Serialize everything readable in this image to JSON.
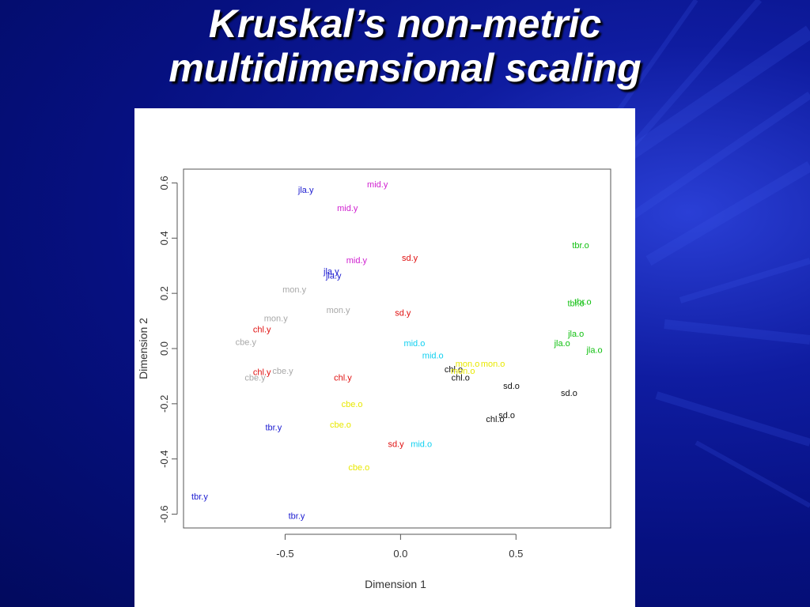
{
  "slide": {
    "title_line1": "Kruskal’s non-metric",
    "title_line2": "multidimensional scaling"
  },
  "colors": {
    "background": "#061080",
    "panel": "#ffffff",
    "blue": "#1a1ad0",
    "magenta": "#d020d0",
    "red": "#e01010",
    "gray": "#a8a8a8",
    "cyan": "#10d0f0",
    "yellow": "#e8e800",
    "black": "#111111",
    "green": "#10c010"
  },
  "chart_data": {
    "type": "scatter",
    "xlabel": "Dimension 1",
    "ylabel": "Dimension 2",
    "xlim": [
      -0.94,
      0.91
    ],
    "ylim": [
      -0.65,
      0.65
    ],
    "xticks": [
      -0.5,
      0.0,
      0.5
    ],
    "xtick_labels": [
      "-0.5",
      "0.0",
      "0.5"
    ],
    "yticks": [
      -0.6,
      -0.4,
      -0.2,
      0.0,
      0.2,
      0.4,
      0.6
    ],
    "ytick_labels": [
      "-0.6",
      "-0.4",
      "-0.2",
      "0.0",
      "0.2",
      "0.4",
      "0.6"
    ],
    "grid": false,
    "points": [
      {
        "label": "jla.y",
        "x": -0.41,
        "y": 0.575,
        "color": "blue"
      },
      {
        "label": "mid.y",
        "x": -0.1,
        "y": 0.595,
        "color": "magenta"
      },
      {
        "label": "mid.y",
        "x": -0.23,
        "y": 0.51,
        "color": "magenta"
      },
      {
        "label": "mid.y",
        "x": -0.19,
        "y": 0.32,
        "color": "magenta"
      },
      {
        "label": "sd.y",
        "x": 0.04,
        "y": 0.33,
        "color": "red"
      },
      {
        "label": "jla.y",
        "x": -0.3,
        "y": 0.28,
        "color": "blue"
      },
      {
        "label": "jla.y",
        "x": -0.29,
        "y": 0.265,
        "color": "blue"
      },
      {
        "label": "mon.y",
        "x": -0.46,
        "y": 0.215,
        "color": "gray"
      },
      {
        "label": "mon.y",
        "x": -0.27,
        "y": 0.14,
        "color": "gray"
      },
      {
        "label": "sd.y",
        "x": 0.01,
        "y": 0.13,
        "color": "red"
      },
      {
        "label": "mon.y",
        "x": -0.54,
        "y": 0.11,
        "color": "gray"
      },
      {
        "label": "chl.y",
        "x": -0.6,
        "y": 0.07,
        "color": "red"
      },
      {
        "label": "cbe.y",
        "x": -0.67,
        "y": 0.025,
        "color": "gray"
      },
      {
        "label": "chl.y",
        "x": -0.6,
        "y": -0.085,
        "color": "red"
      },
      {
        "label": "cbe.y",
        "x": -0.51,
        "y": -0.08,
        "color": "gray"
      },
      {
        "label": "cbe.y",
        "x": -0.63,
        "y": -0.105,
        "color": "gray"
      },
      {
        "label": "chl.y",
        "x": -0.25,
        "y": -0.105,
        "color": "red"
      },
      {
        "label": "mid.o",
        "x": 0.06,
        "y": 0.02,
        "color": "cyan"
      },
      {
        "label": "mid.o",
        "x": 0.14,
        "y": -0.025,
        "color": "cyan"
      },
      {
        "label": "chl.o",
        "x": 0.23,
        "y": -0.075,
        "color": "black"
      },
      {
        "label": "mon.o",
        "x": 0.29,
        "y": -0.055,
        "color": "yellow"
      },
      {
        "label": "mon.o",
        "x": 0.4,
        "y": -0.055,
        "color": "yellow"
      },
      {
        "label": "mon.o",
        "x": 0.27,
        "y": -0.08,
        "color": "yellow"
      },
      {
        "label": "chl.o",
        "x": 0.26,
        "y": -0.105,
        "color": "black"
      },
      {
        "label": "sd.o",
        "x": 0.48,
        "y": -0.135,
        "color": "black"
      },
      {
        "label": "sd.o",
        "x": 0.73,
        "y": -0.16,
        "color": "black"
      },
      {
        "label": "sd.o",
        "x": 0.46,
        "y": -0.24,
        "color": "black"
      },
      {
        "label": "chl.o",
        "x": 0.41,
        "y": -0.255,
        "color": "black"
      },
      {
        "label": "cbe.o",
        "x": -0.21,
        "y": -0.2,
        "color": "yellow"
      },
      {
        "label": "cbe.o",
        "x": -0.26,
        "y": -0.275,
        "color": "yellow"
      },
      {
        "label": "tbr.y",
        "x": -0.55,
        "y": -0.285,
        "color": "blue"
      },
      {
        "label": "sd.y",
        "x": -0.02,
        "y": -0.345,
        "color": "red"
      },
      {
        "label": "mid.o",
        "x": 0.09,
        "y": -0.345,
        "color": "cyan"
      },
      {
        "label": "cbe.o",
        "x": -0.18,
        "y": -0.43,
        "color": "yellow"
      },
      {
        "label": "tbr.y",
        "x": -0.87,
        "y": -0.535,
        "color": "blue"
      },
      {
        "label": "tbr.y",
        "x": -0.45,
        "y": -0.605,
        "color": "blue"
      },
      {
        "label": "tbr.o",
        "x": 0.78,
        "y": 0.375,
        "color": "green"
      },
      {
        "label": "tbr.o",
        "x": 0.79,
        "y": 0.17,
        "color": "green"
      },
      {
        "label": "tbr.o",
        "x": 0.76,
        "y": 0.165,
        "color": "green"
      },
      {
        "label": "jla.o",
        "x": 0.76,
        "y": 0.055,
        "color": "green"
      },
      {
        "label": "jla.o",
        "x": 0.7,
        "y": 0.02,
        "color": "green"
      },
      {
        "label": "jla.o",
        "x": 0.84,
        "y": -0.005,
        "color": "green"
      }
    ]
  }
}
